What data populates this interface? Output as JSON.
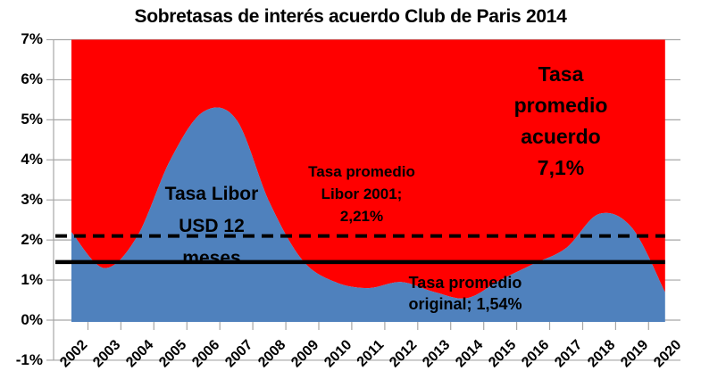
{
  "title": "Sobretasas de interés acuerdo Club de Paris 2014",
  "chart_data": {
    "type": "area",
    "title": "Sobretasas de interés acuerdo Club de Paris 2014",
    "categories": [
      "2002",
      "2003",
      "2004",
      "2005",
      "2006",
      "2007",
      "2008",
      "2009",
      "2010",
      "2011",
      "2012",
      "2013",
      "2014",
      "2015",
      "2016",
      "2017",
      "2018",
      "2019",
      "2020"
    ],
    "series": [
      {
        "name": "Tasa Libor USD 12 meses",
        "type": "area",
        "color": "#4F81BD",
        "values": [
          2.2,
          1.3,
          2.1,
          4.0,
          5.2,
          5.0,
          2.95,
          1.5,
          0.95,
          0.8,
          0.95,
          0.7,
          0.55,
          1.0,
          1.4,
          1.8,
          2.65,
          2.3,
          0.7
        ]
      },
      {
        "name": "Tasa promedio acuerdo",
        "type": "area-fill-above",
        "color": "#FF0000",
        "value": 7.1,
        "clipped_at_axis_max": 7.0
      }
    ],
    "ref_lines": [
      {
        "name": "Tasa promedio Libor 2001",
        "value": 2.21,
        "style": "dashed",
        "color": "#000000",
        "drawn_value": 2.1
      },
      {
        "name": "Tasa promedio original",
        "value": 1.54,
        "style": "solid",
        "color": "#000000",
        "drawn_value": 1.45
      }
    ],
    "ylim": [
      -1,
      7
    ],
    "ytick_labels": [
      "7%",
      "6%",
      "5%",
      "4%",
      "3%",
      "2%",
      "1%",
      "0%",
      "-1%"
    ],
    "ytick_values": [
      7,
      6,
      5,
      4,
      3,
      2,
      1,
      0,
      -1
    ],
    "grid": "horizontal",
    "legend": "none",
    "gridline_color": "#A6A6A6",
    "background": "#FFFFFF"
  },
  "labels": {
    "libor_area": {
      "lines": [
        "Tasa Libor",
        "USD 12",
        "meses"
      ]
    },
    "libor_2001": {
      "lines": [
        "Tasa promedio",
        "Libor 2001;",
        "2,21%"
      ]
    },
    "original": {
      "lines": [
        "Tasa promedio",
        "original; 1,54%"
      ]
    },
    "acuerdo": {
      "lines": [
        "Tasa",
        "promedio",
        "acuerdo",
        "7,1%"
      ]
    }
  }
}
